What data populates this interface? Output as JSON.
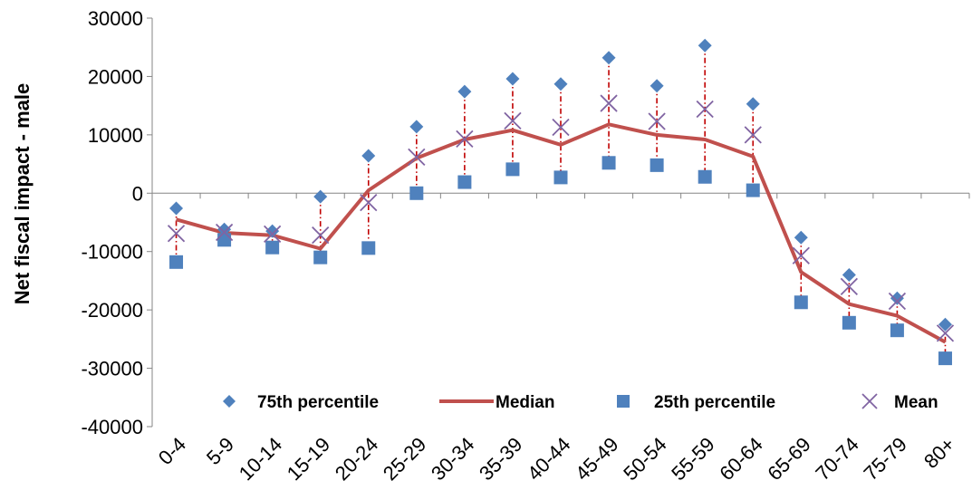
{
  "chart_data": {
    "type": "line",
    "title": "",
    "xlabel": "",
    "ylabel": "Net fiscal impact - male",
    "ylim": [
      -40000,
      30000
    ],
    "yticks": [
      30000,
      20000,
      10000,
      0,
      -10000,
      -20000,
      -30000,
      -40000
    ],
    "categories": [
      "0-4",
      "5-9",
      "10-14",
      "15-19",
      "20-24",
      "25-29",
      "30-34",
      "35-39",
      "40-44",
      "45-49",
      "50-54",
      "55-59",
      "60-64",
      "65-69",
      "70-74",
      "75-79",
      "80+"
    ],
    "series": [
      {
        "name": "75th percentile",
        "kind": "diamond",
        "color": "#4f81bd",
        "values": [
          -2600,
          -6200,
          -6500,
          -600,
          6400,
          11400,
          17400,
          19600,
          18700,
          23200,
          18400,
          25300,
          15300,
          -7600,
          -14000,
          -18000,
          -22500
        ]
      },
      {
        "name": "Median",
        "kind": "line",
        "color": "#c0504d",
        "values": [
          -4500,
          -6800,
          -7200,
          -9500,
          500,
          6000,
          9200,
          10800,
          8300,
          11800,
          10000,
          9200,
          6300,
          -13500,
          -19000,
          -21000,
          -25500
        ]
      },
      {
        "name": "25th percentile",
        "kind": "square",
        "color": "#4f81bd",
        "values": [
          -11800,
          -8000,
          -9300,
          -11000,
          -9400,
          0,
          1900,
          4100,
          2700,
          5200,
          4800,
          2800,
          500,
          -18700,
          -22200,
          -23500,
          -28300
        ]
      },
      {
        "name": "Mean",
        "kind": "x",
        "color": "#8064a2",
        "values": [
          -6900,
          -6700,
          -7000,
          -7200,
          -1600,
          6200,
          9300,
          12400,
          11300,
          15400,
          12300,
          14400,
          10000,
          -10700,
          -16000,
          -18500,
          -24000
        ]
      }
    ],
    "range_bars": {
      "color": "#c00000",
      "style": "dash-dot"
    },
    "legend": "bottom-inside"
  }
}
